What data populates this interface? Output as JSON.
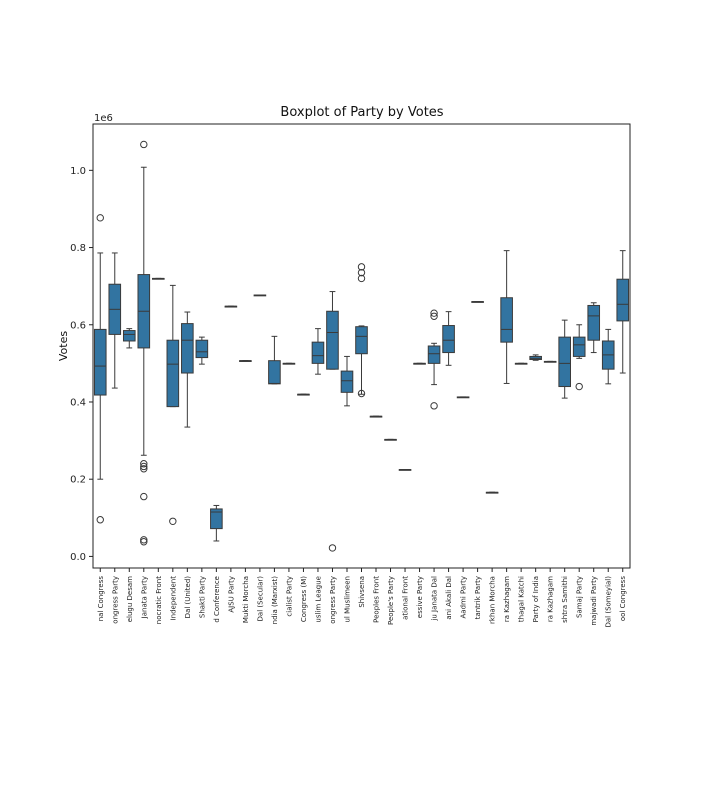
{
  "chart_data": {
    "type": "boxplot",
    "title": "Boxplot of Party by Votes",
    "xlabel": "",
    "ylabel": "Votes",
    "y_scale_label": "1e6",
    "ylim": [
      -30000,
      1120000
    ],
    "yticks": [
      {
        "value": 0,
        "label": "0.0"
      },
      {
        "value": 200000,
        "label": "0.2"
      },
      {
        "value": 400000,
        "label": "0.4"
      },
      {
        "value": 600000,
        "label": "0.6"
      },
      {
        "value": 800000,
        "label": "0.8"
      },
      {
        "value": 1000000,
        "label": "1.0"
      }
    ],
    "box_color": "#3274a1",
    "categories": [
      {
        "label": "nal Congress",
        "whisker_low": 200000,
        "q1": 418000,
        "median": 493000,
        "q3": 588000,
        "whisker_high": 786000,
        "outliers": [
          877000,
          95000
        ]
      },
      {
        "label": "ongress Party",
        "whisker_low": 436000,
        "q1": 575000,
        "median": 640000,
        "q3": 705000,
        "whisker_high": 786000,
        "outliers": []
      },
      {
        "label": "elugu Desam",
        "whisker_low": 540000,
        "q1": 558000,
        "median": 575000,
        "q3": 585000,
        "whisker_high": 590000,
        "outliers": []
      },
      {
        "label": "Janata Party",
        "whisker_low": 262000,
        "q1": 540000,
        "median": 635000,
        "q3": 730000,
        "whisker_high": 1008000,
        "outliers": [
          1067000,
          240000,
          233000,
          227000,
          155000,
          43000,
          38000
        ]
      },
      {
        "label": "nocratic Front",
        "whisker_low": 720000,
        "q1": 720000,
        "median": 720000,
        "q3": 720000,
        "whisker_high": 720000,
        "outliers": []
      },
      {
        "label": "Independent",
        "whisker_low": 388000,
        "q1": 388000,
        "median": 498000,
        "q3": 560000,
        "whisker_high": 702000,
        "outliers": [
          91000
        ]
      },
      {
        "label": "Dal (United)",
        "whisker_low": 335000,
        "q1": 475000,
        "median": 560000,
        "q3": 603000,
        "whisker_high": 633000,
        "outliers": []
      },
      {
        "label": "Shakti Party",
        "whisker_low": 498000,
        "q1": 515000,
        "median": 530000,
        "q3": 560000,
        "whisker_high": 568000,
        "outliers": []
      },
      {
        "label": "d Conference",
        "whisker_low": 40000,
        "q1": 72000,
        "median": 115000,
        "q3": 123000,
        "whisker_high": 132000,
        "outliers": []
      },
      {
        "label": "AJSU Party",
        "whisker_low": 648000,
        "q1": 648000,
        "median": 648000,
        "q3": 648000,
        "whisker_high": 648000,
        "outliers": []
      },
      {
        "label": "Mukti Morcha",
        "whisker_low": 507000,
        "q1": 507000,
        "median": 507000,
        "q3": 507000,
        "whisker_high": 507000,
        "outliers": []
      },
      {
        "label": "Dal (Secular)",
        "whisker_low": 677000,
        "q1": 677000,
        "median": 677000,
        "q3": 677000,
        "whisker_high": 677000,
        "outliers": []
      },
      {
        "label": "ndia (Marxist)",
        "whisker_low": 447000,
        "q1": 447000,
        "median": 448000,
        "q3": 507000,
        "whisker_high": 570000,
        "outliers": []
      },
      {
        "label": "cialist Party",
        "whisker_low": 500000,
        "q1": 500000,
        "median": 500000,
        "q3": 500000,
        "whisker_high": 500000,
        "outliers": []
      },
      {
        "label": "Congress (M)",
        "whisker_low": 420000,
        "q1": 420000,
        "median": 420000,
        "q3": 420000,
        "whisker_high": 420000,
        "outliers": []
      },
      {
        "label": "uslim League",
        "whisker_low": 472000,
        "q1": 500000,
        "median": 520000,
        "q3": 555000,
        "whisker_high": 590000,
        "outliers": []
      },
      {
        "label": "ongress Party",
        "whisker_low": 485000,
        "q1": 485000,
        "median": 580000,
        "q3": 635000,
        "whisker_high": 686000,
        "outliers": [
          22000
        ]
      },
      {
        "label": "ul Muslimeen",
        "whisker_low": 390000,
        "q1": 425000,
        "median": 455000,
        "q3": 480000,
        "whisker_high": 518000,
        "outliers": []
      },
      {
        "label": "Shivsena",
        "whisker_low": 420000,
        "q1": 525000,
        "median": 570000,
        "q3": 595000,
        "whisker_high": 597000,
        "outliers": [
          750000,
          735000,
          720000,
          422000
        ]
      },
      {
        "label": "Peoples Front",
        "whisker_low": 363000,
        "q1": 363000,
        "median": 363000,
        "q3": 363000,
        "whisker_high": 363000,
        "outliers": []
      },
      {
        "label": "People's Party",
        "whisker_low": 303000,
        "q1": 303000,
        "median": 303000,
        "q3": 303000,
        "whisker_high": 303000,
        "outliers": []
      },
      {
        "label": "ational Front",
        "whisker_low": 225000,
        "q1": 225000,
        "median": 225000,
        "q3": 225000,
        "whisker_high": 225000,
        "outliers": []
      },
      {
        "label": "essive Party",
        "whisker_low": 500000,
        "q1": 500000,
        "median": 500000,
        "q3": 500000,
        "whisker_high": 500000,
        "outliers": []
      },
      {
        "label": "ju Janata Dal",
        "whisker_low": 445000,
        "q1": 500000,
        "median": 525000,
        "q3": 545000,
        "whisker_high": 552000,
        "outliers": [
          630000,
          622000,
          390000
        ]
      },
      {
        "label": "ani Akali Dal",
        "whisker_low": 495000,
        "q1": 528000,
        "median": 560000,
        "q3": 598000,
        "whisker_high": 634000,
        "outliers": []
      },
      {
        "label": "Aadmi Party",
        "whisker_low": 413000,
        "q1": 413000,
        "median": 413000,
        "q3": 413000,
        "whisker_high": 413000,
        "outliers": []
      },
      {
        "label": "tantrik Party",
        "whisker_low": 660000,
        "q1": 660000,
        "median": 660000,
        "q3": 660000,
        "whisker_high": 660000,
        "outliers": []
      },
      {
        "label": "rkhan Morcha",
        "whisker_low": 166000,
        "q1": 166000,
        "median": 166000,
        "q3": 166000,
        "whisker_high": 166000,
        "outliers": []
      },
      {
        "label": "ra Kazhagam",
        "whisker_low": 448000,
        "q1": 555000,
        "median": 588000,
        "q3": 670000,
        "whisker_high": 792000,
        "outliers": []
      },
      {
        "label": "thagal Katchi",
        "whisker_low": 500000,
        "q1": 500000,
        "median": 500000,
        "q3": 500000,
        "whisker_high": 500000,
        "outliers": []
      },
      {
        "label": "Party of India",
        "whisker_low": 508000,
        "q1": 510000,
        "median": 513000,
        "q3": 518000,
        "whisker_high": 522000,
        "outliers": []
      },
      {
        "label": "ra Kazhagam",
        "whisker_low": 505000,
        "q1": 505000,
        "median": 505000,
        "q3": 505000,
        "whisker_high": 505000,
        "outliers": []
      },
      {
        "label": "shtra Samithi",
        "whisker_low": 410000,
        "q1": 440000,
        "median": 500000,
        "q3": 568000,
        "whisker_high": 612000,
        "outliers": []
      },
      {
        "label": "Samaj Party",
        "whisker_low": 513000,
        "q1": 518000,
        "median": 548000,
        "q3": 568000,
        "whisker_high": 600000,
        "outliers": [
          440000
        ]
      },
      {
        "label": "majwadi Party",
        "whisker_low": 528000,
        "q1": 560000,
        "median": 623000,
        "q3": 650000,
        "whisker_high": 657000,
        "outliers": []
      },
      {
        "label": "Dal (Someyial)",
        "whisker_low": 447000,
        "q1": 485000,
        "median": 522000,
        "q3": 558000,
        "whisker_high": 588000,
        "outliers": []
      },
      {
        "label": "ool Congress",
        "whisker_low": 475000,
        "q1": 610000,
        "median": 653000,
        "q3": 718000,
        "whisker_high": 792000,
        "outliers": []
      }
    ]
  }
}
